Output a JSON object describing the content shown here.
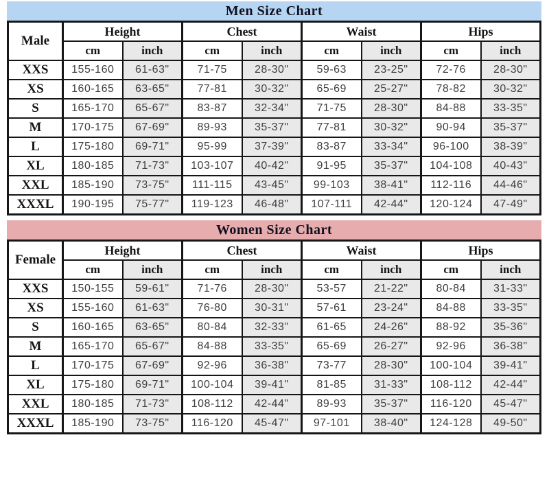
{
  "colors": {
    "men_title_bg": "#b6d5f3",
    "women_title_bg": "#e7acae",
    "inch_cell_bg": "#e9e9e9",
    "border": "#161616",
    "title_text": "#10101e",
    "data_text": "#3f3f3f"
  },
  "tables": {
    "men": {
      "title": "Men Size Chart",
      "corner_label": "Male",
      "groups": [
        "Height",
        "Chest",
        "Waist",
        "Hips"
      ],
      "units": [
        "cm",
        "inch"
      ],
      "rows": [
        [
          "XXS",
          "155-160",
          "61-63\"",
          "71-75",
          "28-30\"",
          "59-63",
          "23-25\"",
          "72-76",
          "28-30\""
        ],
        [
          "XS",
          "160-165",
          "63-65\"",
          "77-81",
          "30-32\"",
          "65-69",
          "25-27\"",
          "78-82",
          "30-32\""
        ],
        [
          "S",
          "165-170",
          "65-67\"",
          "83-87",
          "32-34\"",
          "71-75",
          "28-30\"",
          "84-88",
          "33-35\""
        ],
        [
          "M",
          "170-175",
          "67-69\"",
          "89-93",
          "35-37\"",
          "77-81",
          "30-32\"",
          "90-94",
          "35-37\""
        ],
        [
          "L",
          "175-180",
          "69-71\"",
          "95-99",
          "37-39\"",
          "83-87",
          "33-34\"",
          "96-100",
          "38-39\""
        ],
        [
          "XL",
          "180-185",
          "71-73\"",
          "103-107",
          "40-42\"",
          "91-95",
          "35-37\"",
          "104-108",
          "40-43\""
        ],
        [
          "XXL",
          "185-190",
          "73-75\"",
          "111-115",
          "43-45\"",
          "99-103",
          "38-41\"",
          "112-116",
          "44-46\""
        ],
        [
          "XXXL",
          "190-195",
          "75-77\"",
          "119-123",
          "46-48\"",
          "107-111",
          "42-44\"",
          "120-124",
          "47-49\""
        ]
      ]
    },
    "women": {
      "title": "Women Size Chart",
      "corner_label": "Female",
      "groups": [
        "Height",
        "Chest",
        "Waist",
        "Hips"
      ],
      "units": [
        "cm",
        "inch"
      ],
      "rows": [
        [
          "XXS",
          "150-155",
          "59-61\"",
          "71-76",
          "28-30\"",
          "53-57",
          "21-22\"",
          "80-84",
          "31-33\""
        ],
        [
          "XS",
          "155-160",
          "61-63\"",
          "76-80",
          "30-31\"",
          "57-61",
          "23-24\"",
          "84-88",
          "33-35\""
        ],
        [
          "S",
          "160-165",
          "63-65\"",
          "80-84",
          "32-33\"",
          "61-65",
          "24-26\"",
          "88-92",
          "35-36\""
        ],
        [
          "M",
          "165-170",
          "65-67\"",
          "84-88",
          "33-35\"",
          "65-69",
          "26-27\"",
          "92-96",
          "36-38\""
        ],
        [
          "L",
          "170-175",
          "67-69\"",
          "92-96",
          "36-38\"",
          "73-77",
          "28-30\"",
          "100-104",
          "39-41\""
        ],
        [
          "XL",
          "175-180",
          "69-71\"",
          "100-104",
          "39-41\"",
          "81-85",
          "31-33\"",
          "108-112",
          "42-44\""
        ],
        [
          "XXL",
          "180-185",
          "71-73\"",
          "108-112",
          "42-44\"",
          "89-93",
          "35-37\"",
          "116-120",
          "45-47\""
        ],
        [
          "XXXL",
          "185-190",
          "73-75\"",
          "116-120",
          "45-47\"",
          "97-101",
          "38-40\"",
          "124-128",
          "49-50\""
        ]
      ]
    }
  },
  "chart_data": [
    {
      "type": "table",
      "title": "Men Size Chart",
      "columns": [
        "Male",
        "Height cm",
        "Height inch",
        "Chest cm",
        "Chest inch",
        "Waist cm",
        "Waist inch",
        "Hips cm",
        "Hips inch"
      ],
      "rows": [
        [
          "XXS",
          "155-160",
          "61-63\"",
          "71-75",
          "28-30\"",
          "59-63",
          "23-25\"",
          "72-76",
          "28-30\""
        ],
        [
          "XS",
          "160-165",
          "63-65\"",
          "77-81",
          "30-32\"",
          "65-69",
          "25-27\"",
          "78-82",
          "30-32\""
        ],
        [
          "S",
          "165-170",
          "65-67\"",
          "83-87",
          "32-34\"",
          "71-75",
          "28-30\"",
          "84-88",
          "33-35\""
        ],
        [
          "M",
          "170-175",
          "67-69\"",
          "89-93",
          "35-37\"",
          "77-81",
          "30-32\"",
          "90-94",
          "35-37\""
        ],
        [
          "L",
          "175-180",
          "69-71\"",
          "95-99",
          "37-39\"",
          "83-87",
          "33-34\"",
          "96-100",
          "38-39\""
        ],
        [
          "XL",
          "180-185",
          "71-73\"",
          "103-107",
          "40-42\"",
          "91-95",
          "35-37\"",
          "104-108",
          "40-43\""
        ],
        [
          "XXL",
          "185-190",
          "73-75\"",
          "111-115",
          "43-45\"",
          "99-103",
          "38-41\"",
          "112-116",
          "44-46\""
        ],
        [
          "XXXL",
          "190-195",
          "75-77\"",
          "119-123",
          "46-48\"",
          "107-111",
          "42-44\"",
          "120-124",
          "47-49\""
        ]
      ]
    },
    {
      "type": "table",
      "title": "Women Size Chart",
      "columns": [
        "Female",
        "Height cm",
        "Height inch",
        "Chest cm",
        "Chest inch",
        "Waist cm",
        "Waist inch",
        "Hips cm",
        "Hips inch"
      ],
      "rows": [
        [
          "XXS",
          "150-155",
          "59-61\"",
          "71-76",
          "28-30\"",
          "53-57",
          "21-22\"",
          "80-84",
          "31-33\""
        ],
        [
          "XS",
          "155-160",
          "61-63\"",
          "76-80",
          "30-31\"",
          "57-61",
          "23-24\"",
          "84-88",
          "33-35\""
        ],
        [
          "S",
          "160-165",
          "63-65\"",
          "80-84",
          "32-33\"",
          "61-65",
          "24-26\"",
          "88-92",
          "35-36\""
        ],
        [
          "M",
          "165-170",
          "65-67\"",
          "84-88",
          "33-35\"",
          "65-69",
          "26-27\"",
          "92-96",
          "36-38\""
        ],
        [
          "L",
          "170-175",
          "67-69\"",
          "92-96",
          "36-38\"",
          "73-77",
          "28-30\"",
          "100-104",
          "39-41\""
        ],
        [
          "XL",
          "175-180",
          "69-71\"",
          "100-104",
          "39-41\"",
          "81-85",
          "31-33\"",
          "108-112",
          "42-44\""
        ],
        [
          "XXL",
          "180-185",
          "71-73\"",
          "108-112",
          "42-44\"",
          "89-93",
          "35-37\"",
          "116-120",
          "45-47\""
        ],
        [
          "XXXL",
          "185-190",
          "73-75\"",
          "116-120",
          "45-47\"",
          "97-101",
          "38-40\"",
          "124-128",
          "49-50\""
        ]
      ]
    }
  ]
}
